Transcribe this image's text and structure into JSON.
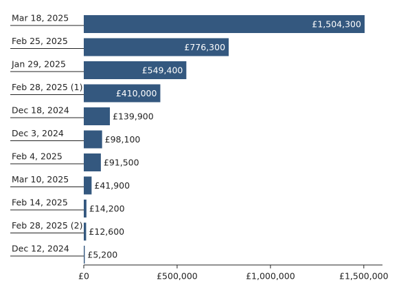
{
  "chart_data": {
    "type": "bar",
    "orientation": "horizontal",
    "categories": [
      "Mar 18, 2025",
      "Feb 25, 2025",
      "Jan 29, 2025",
      "Feb 28, 2025 (1)",
      "Dec 18, 2024",
      "Dec 3, 2024",
      "Feb 4, 2025",
      "Mar 10, 2025",
      "Feb 14, 2025",
      "Feb 28, 2025 (2)",
      "Dec 12, 2024"
    ],
    "values": [
      1504300,
      776300,
      549400,
      410000,
      139900,
      98100,
      91500,
      41900,
      14200,
      12600,
      5200
    ],
    "value_labels": [
      "£1,504,300",
      "£776,300",
      "£549,400",
      "£410,000",
      "£139,900",
      "£98,100",
      "£91,500",
      "£41,900",
      "£14,200",
      "£12,600",
      "£5,200"
    ],
    "color": "#34587f",
    "xlim": [
      0,
      1600000
    ],
    "xticks": [
      {
        "value": 0,
        "label": "£0"
      },
      {
        "value": 500000,
        "label": "£500,000"
      },
      {
        "value": 1000000,
        "label": "£1,000,000"
      },
      {
        "value": 1500000,
        "label": "£1,500,000"
      }
    ]
  }
}
